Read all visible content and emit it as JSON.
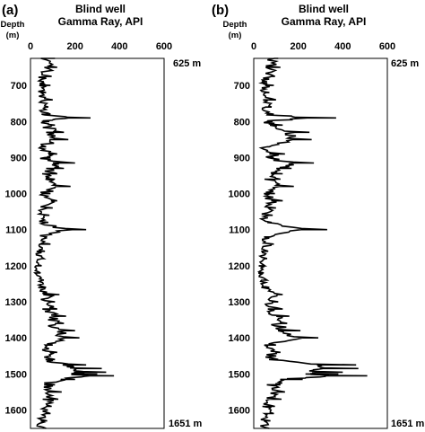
{
  "chart_data": [
    {
      "type": "line",
      "orientation": "vertical-log",
      "panel_label": "(a)",
      "title": "Blind well",
      "subtitle": "Gamma Ray, API",
      "depth_label": "Depth",
      "depth_unit": "(m)",
      "top_label": "625 m",
      "bottom_label": "1651 m",
      "xlim": [
        0,
        600
      ],
      "x_ticks": [
        "0",
        "200",
        "400",
        "600"
      ],
      "ylim": [
        625,
        1651
      ],
      "y_ticks": [
        "700",
        "800",
        "900",
        "1000",
        "1100",
        "1200",
        "1300",
        "1400",
        "1500",
        "1600"
      ],
      "depth": [
        625,
        650,
        675,
        690,
        700,
        720,
        740,
        760,
        780,
        790,
        800,
        810,
        830,
        850,
        870,
        890,
        900,
        915,
        930,
        945,
        960,
        980,
        1000,
        1020,
        1040,
        1060,
        1080,
        1100,
        1120,
        1140,
        1160,
        1180,
        1200,
        1220,
        1240,
        1260,
        1280,
        1300,
        1320,
        1340,
        1360,
        1380,
        1400,
        1420,
        1440,
        1460,
        1475,
        1485,
        1495,
        1500,
        1505,
        1515,
        1530,
        1550,
        1570,
        1590,
        1610,
        1630,
        1651
      ],
      "gamma_ray": [
        110,
        120,
        95,
        60,
        90,
        70,
        100,
        80,
        90,
        270,
        85,
        110,
        150,
        170,
        70,
        120,
        90,
        200,
        150,
        120,
        110,
        180,
        90,
        120,
        100,
        85,
        80,
        250,
        75,
        90,
        65,
        60,
        50,
        45,
        60,
        70,
        130,
        110,
        120,
        160,
        150,
        200,
        220,
        100,
        120,
        110,
        250,
        320,
        340,
        300,
        375,
        200,
        110,
        140,
        125,
        95,
        90,
        75,
        70
      ]
    },
    {
      "type": "line",
      "orientation": "vertical-log",
      "panel_label": "(b)",
      "title": "Blind well",
      "subtitle": "Gamma Ray, API",
      "depth_label": "Depth",
      "depth_unit": "(m)",
      "top_label": "625 m",
      "bottom_label": "1651 m",
      "xlim": [
        0,
        600
      ],
      "x_ticks": [
        "0",
        "200",
        "400",
        "600"
      ],
      "ylim": [
        625,
        1651
      ],
      "y_ticks": [
        "700",
        "800",
        "900",
        "1000",
        "1100",
        "1200",
        "1300",
        "1400",
        "1500",
        "1600"
      ],
      "depth": [
        625,
        650,
        675,
        690,
        700,
        720,
        740,
        760,
        780,
        790,
        800,
        810,
        830,
        850,
        870,
        890,
        900,
        915,
        930,
        945,
        960,
        980,
        1000,
        1020,
        1040,
        1060,
        1080,
        1100,
        1120,
        1140,
        1160,
        1180,
        1200,
        1220,
        1240,
        1260,
        1280,
        1300,
        1320,
        1340,
        1360,
        1380,
        1400,
        1420,
        1440,
        1460,
        1475,
        1485,
        1495,
        1500,
        1505,
        1515,
        1530,
        1550,
        1570,
        1590,
        1610,
        1630,
        1651
      ],
      "gamma_ray": [
        110,
        120,
        95,
        60,
        90,
        70,
        100,
        80,
        90,
        370,
        85,
        130,
        250,
        260,
        70,
        140,
        90,
        270,
        170,
        130,
        120,
        180,
        95,
        130,
        100,
        85,
        80,
        330,
        75,
        90,
        65,
        60,
        50,
        45,
        60,
        70,
        130,
        110,
        130,
        160,
        150,
        210,
        290,
        100,
        120,
        110,
        460,
        470,
        400,
        380,
        510,
        220,
        120,
        140,
        125,
        95,
        90,
        75,
        70
      ]
    }
  ]
}
